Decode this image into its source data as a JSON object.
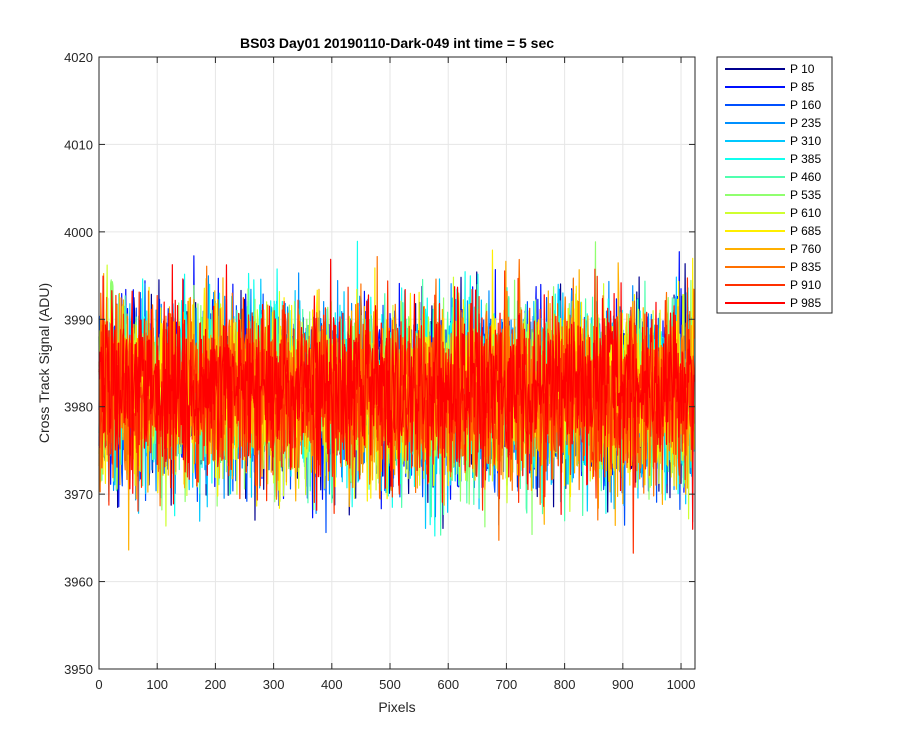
{
  "chart_data": {
    "type": "line",
    "title": "BS03 Day01 20190110-Dark-049 int time = 5 sec",
    "xlabel": "Pixels",
    "ylabel": "Cross Track Signal (ADU)",
    "xlim": [
      0,
      1024
    ],
    "ylim": [
      3950,
      4020
    ],
    "xticks": [
      0,
      100,
      200,
      300,
      400,
      500,
      600,
      700,
      800,
      900,
      1000
    ],
    "yticks": [
      3950,
      3960,
      3970,
      3980,
      3990,
      4000,
      4010,
      4020
    ],
    "grid": true,
    "legend_position": "outside-top-right",
    "x_points": 1024,
    "series": [
      {
        "name": "P 10",
        "color": "#00008f",
        "mean": 3981,
        "spread": 8,
        "seed": 11
      },
      {
        "name": "P 85",
        "color": "#0010ff",
        "mean": 3982,
        "spread": 8,
        "seed": 23
      },
      {
        "name": "P 160",
        "color": "#0050ff",
        "mean": 3981,
        "spread": 8,
        "seed": 37
      },
      {
        "name": "P 235",
        "color": "#0090ff",
        "mean": 3982,
        "spread": 8,
        "seed": 41
      },
      {
        "name": "P 310",
        "color": "#00c8ff",
        "mean": 3981,
        "spread": 8,
        "seed": 53
      },
      {
        "name": "P 385",
        "color": "#10ffef",
        "mean": 3982,
        "spread": 8,
        "seed": 67
      },
      {
        "name": "P 460",
        "color": "#50ffaf",
        "mean": 3981,
        "spread": 8,
        "seed": 71
      },
      {
        "name": "P 535",
        "color": "#90ff6f",
        "mean": 3982,
        "spread": 8,
        "seed": 83
      },
      {
        "name": "P 610",
        "color": "#cfff30",
        "mean": 3981,
        "spread": 8,
        "seed": 97
      },
      {
        "name": "P 685",
        "color": "#ffef00",
        "mean": 3982,
        "spread": 8,
        "seed": 101
      },
      {
        "name": "P 760",
        "color": "#ffb000",
        "mean": 3981,
        "spread": 8,
        "seed": 113
      },
      {
        "name": "P 835",
        "color": "#ff7000",
        "mean": 3982,
        "spread": 8,
        "seed": 127
      },
      {
        "name": "P 910",
        "color": "#ff3000",
        "mean": 3981,
        "spread": 8,
        "seed": 131
      },
      {
        "name": "P 985",
        "color": "#ff0000",
        "mean": 3982,
        "spread": 8,
        "seed": 149
      }
    ]
  }
}
